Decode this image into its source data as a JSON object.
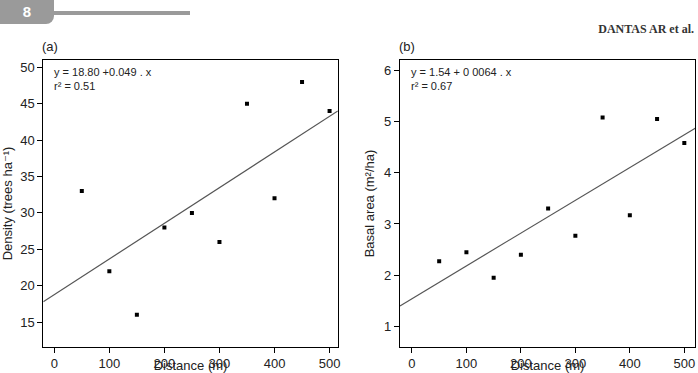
{
  "header": {
    "page": "8",
    "authors": "DANTAS AR et al."
  },
  "chart_data": [
    {
      "type": "scatter",
      "title": "(a)",
      "annotations": [
        "y = 18.80 +0.049 . x",
        "r² = 0.51"
      ],
      "x_label": "Distance (m)",
      "y_label": "Density (trees ha⁻¹)",
      "series": [
        {
          "type": "scatter",
          "marker": "square",
          "color": "#000000",
          "x": [
            50,
            100,
            150,
            200,
            250,
            300,
            350,
            400,
            450,
            500
          ],
          "values": [
            33,
            22,
            16,
            28,
            30,
            26,
            45,
            32,
            48,
            44
          ]
        },
        {
          "type": "line",
          "line_style": "solid",
          "color": "#555555",
          "x": [
            -20,
            515
          ],
          "values": [
            17.8,
            44.0
          ]
        }
      ],
      "xlim": [
        -20,
        515
      ],
      "xticks": [
        0,
        100,
        200,
        300,
        400,
        500
      ],
      "ylim": [
        11.6,
        51
      ],
      "yticks": [
        15,
        20,
        25,
        30,
        35,
        40,
        45,
        50
      ],
      "grid": false
    },
    {
      "type": "scatter",
      "title": "(b)",
      "annotations": [
        "y = 1.54 + 0 0064 . x",
        "r² = 0.67"
      ],
      "x_label": "Distance (m)",
      "y_label": "Basal area (m²/ha)",
      "series": [
        {
          "type": "scatter",
          "marker": "square",
          "color": "#000000",
          "x": [
            50,
            100,
            150,
            200,
            250,
            300,
            350,
            400,
            450,
            500
          ],
          "values": [
            2.27,
            2.45,
            1.95,
            2.4,
            3.3,
            2.77,
            5.08,
            3.17,
            5.05,
            4.58
          ]
        },
        {
          "type": "line",
          "line_style": "solid",
          "color": "#555555",
          "x": [
            -22,
            520
          ],
          "values": [
            1.4,
            4.87
          ]
        }
      ],
      "xlim": [
        -22,
        520
      ],
      "xticks": [
        0,
        100,
        200,
        300,
        400,
        500
      ],
      "ylim": [
        0.6,
        6.2
      ],
      "yticks": [
        1,
        2,
        3,
        4,
        5,
        6
      ],
      "grid": false
    }
  ]
}
